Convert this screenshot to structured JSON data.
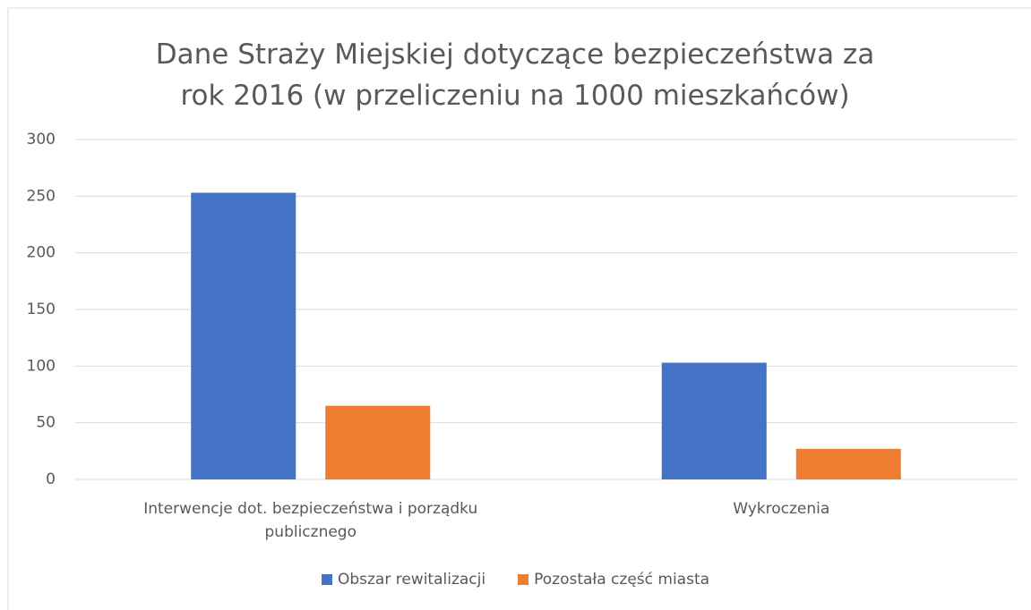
{
  "chart_data": {
    "type": "bar",
    "title": "Dane Straży Miejskiej dotyczące bezpieczeństwa za rok 2016 (w przeliczeniu na 1000 mieszkańców)",
    "categories": [
      "Interwencje dot. bezpieczeństwa i porządku publicznego",
      "Wykroczenia"
    ],
    "series": [
      {
        "name": "Obszar rewitalizacji",
        "color": "#4472c4",
        "values": [
          253,
          103
        ]
      },
      {
        "name": "Pozostała część miasta",
        "color": "#ed7d31",
        "values": [
          65,
          27
        ]
      }
    ],
    "ylim": [
      0,
      300
    ],
    "yticks": [
      0,
      50,
      100,
      150,
      200,
      250,
      300
    ],
    "grid": true,
    "legend": "bottom"
  }
}
